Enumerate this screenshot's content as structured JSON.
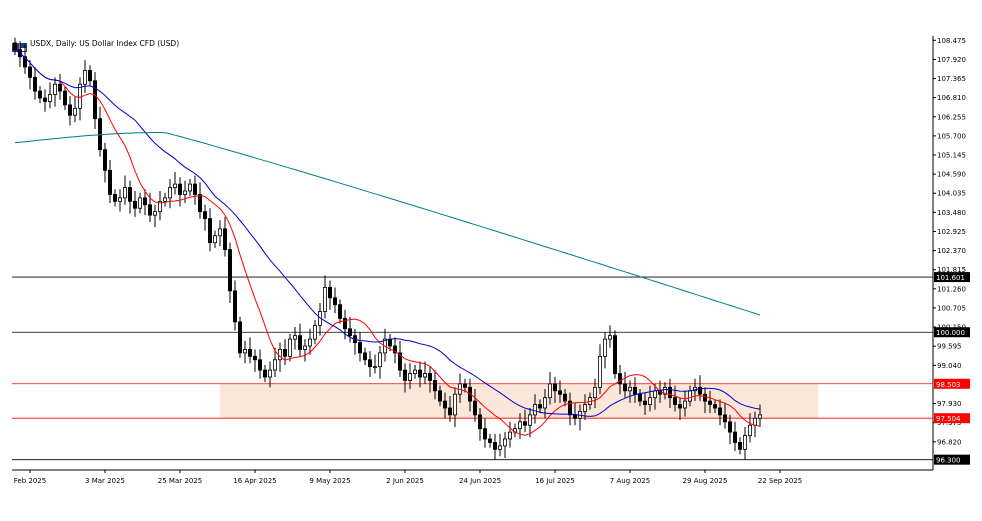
{
  "header": {
    "title": "USDX, Daily:  US Dollar Index CFD (USD)"
  },
  "chart_data": {
    "type": "candlestick",
    "timeframe": "Daily",
    "ylim": [
      96.0,
      108.6
    ],
    "y_ticks": [
      "108.475",
      "107.920",
      "107.365",
      "106.810",
      "106.255",
      "105.700",
      "105.145",
      "104.590",
      "104.035",
      "103.480",
      "102.925",
      "102.370",
      "101.815",
      "101.260",
      "100.705",
      "100.150",
      "99.595",
      "99.040",
      "97.930",
      "97.375",
      "96.820"
    ],
    "x_ticks": [
      "Feb 2025",
      "3 Mar 2025",
      "25 Mar 2025",
      "16 Apr 2025",
      "9 May 2025",
      "2 Jun 2025",
      "24 Jun 2025",
      "16 Jul 2025",
      "7 Aug 2025",
      "29 Aug 2025",
      "22 Sep 2025"
    ],
    "horizontal_levels": [
      {
        "value": 101.601,
        "label": "101.601",
        "color": "#000000"
      },
      {
        "value": 100.0,
        "label": "100.000",
        "color": "#000000"
      },
      {
        "value": 98.503,
        "label": "98.503",
        "color": "#ff0000"
      },
      {
        "value": 97.504,
        "label": "97.504",
        "color": "#ff0000"
      },
      {
        "value": 96.3,
        "label": "96.300",
        "color": "#000000"
      }
    ],
    "zone": {
      "from": 97.504,
      "to": 98.503,
      "color": "#fbe7d9"
    },
    "closes": [
      108.2,
      108.0,
      107.7,
      107.4,
      107.0,
      106.8,
      106.7,
      106.9,
      107.2,
      107.0,
      106.6,
      106.3,
      106.5,
      107.2,
      107.6,
      107.3,
      106.2,
      105.3,
      104.7,
      104.0,
      103.8,
      103.9,
      104.2,
      103.8,
      103.6,
      103.9,
      103.7,
      103.4,
      103.5,
      103.8,
      103.9,
      104.2,
      104.3,
      104.0,
      104.1,
      104.3,
      104.0,
      103.5,
      103.3,
      102.6,
      102.8,
      103.0,
      102.4,
      101.2,
      100.3,
      99.4,
      99.5,
      99.3,
      99.2,
      98.9,
      98.7,
      98.9,
      99.2,
      99.5,
      99.3,
      99.8,
      99.9,
      99.5,
      99.6,
      99.8,
      100.2,
      100.6,
      101.3,
      101.0,
      100.8,
      100.4,
      100.1,
      99.9,
      99.7,
      99.4,
      99.2,
      99.0,
      99.0,
      99.4,
      99.8,
      99.6,
      99.4,
      98.9,
      98.6,
      98.8,
      98.9,
      98.7,
      98.8,
      98.6,
      98.3,
      98.0,
      97.8,
      97.6,
      98.2,
      98.5,
      98.4,
      98.0,
      97.6,
      97.2,
      96.9,
      96.8,
      96.6,
      96.7,
      96.9,
      97.1,
      97.2,
      97.4,
      97.3,
      97.6,
      97.9,
      97.8,
      98.1,
      98.5,
      98.3,
      98.2,
      98.0,
      97.6,
      97.5,
      97.7,
      97.9,
      98.1,
      98.4,
      99.3,
      99.8,
      99.9,
      98.8,
      98.5,
      98.3,
      98.4,
      98.2,
      98.0,
      97.9,
      98.1,
      98.3,
      98.2,
      98.4,
      98.1,
      97.9,
      97.8,
      98.0,
      98.3,
      98.4,
      98.2,
      98.0,
      97.9,
      97.8,
      97.6,
      97.4,
      97.1,
      96.8,
      96.6,
      97.0,
      97.3,
      97.5,
      97.6
    ],
    "sma_fast_color": "#ff0000",
    "sma_mid_color": "#0000cc",
    "sma_slow": {
      "start": 105.5,
      "end": 100.5,
      "color": "#008080"
    }
  }
}
